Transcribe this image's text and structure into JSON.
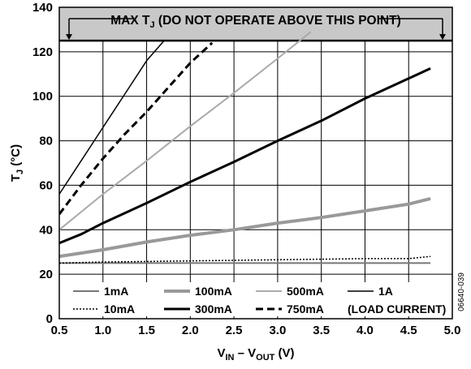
{
  "chart_data": {
    "type": "line",
    "title": "",
    "xlabel": {
      "main": "V",
      "sub1": "IN",
      "mid": " – V",
      "sub2": "OUT",
      "tail": " (V)"
    },
    "ylabel": {
      "main": "T",
      "sub": "J",
      "tail": " (°C)"
    },
    "xlim": [
      0.5,
      5.0
    ],
    "ylim": [
      0,
      140
    ],
    "x_ticks": [
      "0.5",
      "1.0",
      "1.5",
      "2.0",
      "2.5",
      "3.0",
      "3.5",
      "4.0",
      "4.5",
      "5.0"
    ],
    "y_ticks": [
      "0",
      "20",
      "40",
      "60",
      "80",
      "100",
      "120",
      "140"
    ],
    "grid": true,
    "limit_line": {
      "y": 125,
      "text_pre": "MAX T",
      "text_sub": "J",
      "text_post": " (DO NOT OPERATE ABOVE THIS POINT)"
    },
    "series": [
      {
        "name": "1mA",
        "color": "#777777",
        "width": 2,
        "dash": "",
        "x": [
          0.5,
          1.0,
          2.0,
          3.0,
          4.0,
          4.75
        ],
        "y": [
          25,
          25,
          25,
          25,
          25,
          25
        ]
      },
      {
        "name": "10mA",
        "color": "#000000",
        "width": 1.5,
        "dash": "2,2",
        "x": [
          0.5,
          1.0,
          2.0,
          3.0,
          4.0,
          4.5,
          4.75
        ],
        "y": [
          25,
          25.5,
          26,
          26.5,
          27,
          27,
          28
        ]
      },
      {
        "name": "100mA",
        "color": "#999999",
        "width": 4,
        "dash": "",
        "x": [
          0.5,
          1.0,
          1.5,
          2.0,
          2.5,
          3.0,
          3.5,
          4.0,
          4.5,
          4.75
        ],
        "y": [
          28,
          31,
          34.5,
          37.5,
          40,
          43,
          45.5,
          48.5,
          51.5,
          54
        ]
      },
      {
        "name": "300mA",
        "color": "#000000",
        "width": 3,
        "dash": "",
        "x": [
          0.5,
          0.75,
          1.0,
          1.5,
          2.0,
          2.5,
          3.0,
          3.5,
          4.0,
          4.5,
          4.75
        ],
        "y": [
          34,
          38,
          43,
          52,
          61.5,
          70.5,
          80,
          89,
          99,
          108,
          112.5
        ]
      },
      {
        "name": "500mA",
        "color": "#aaaaaa",
        "width": 2,
        "dash": "",
        "x": [
          0.5,
          1.0,
          1.5,
          2.0,
          2.5,
          3.0,
          3.38
        ],
        "y": [
          40,
          56,
          71,
          86.5,
          101.5,
          117,
          129
        ]
      },
      {
        "name": "750mA",
        "color": "#000000",
        "width": 3,
        "dash": "9,5",
        "x": [
          0.5,
          0.75,
          1.0,
          1.25,
          1.5,
          1.75,
          2.0,
          2.25
        ],
        "y": [
          47,
          60,
          72,
          83,
          93,
          104,
          115,
          124
        ]
      },
      {
        "name": "1A",
        "color": "#000000",
        "width": 1.5,
        "dash": "",
        "x": [
          0.5,
          0.75,
          1.0,
          1.25,
          1.5,
          1.7
        ],
        "y": [
          56,
          71,
          86,
          101,
          116,
          125
        ]
      }
    ],
    "legend": {
      "placement": "bottom-inside",
      "note": "(LOAD CURRENT)"
    },
    "side_label": "06640-039"
  }
}
